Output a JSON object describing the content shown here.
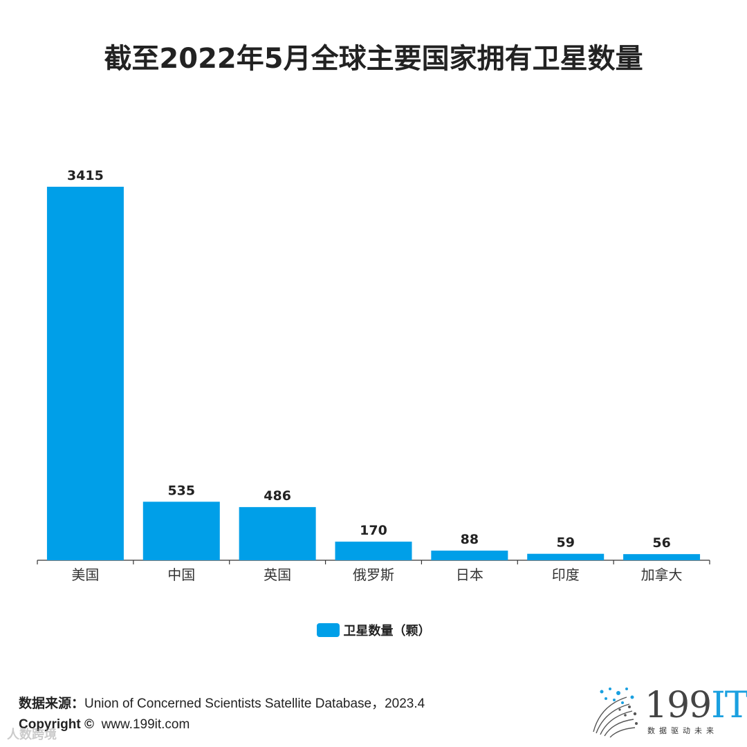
{
  "title": "截至2022年5月全球主要国家拥有卫星数量",
  "chart_data": {
    "type": "bar",
    "categories": [
      "美国",
      "中国",
      "英国",
      "俄罗斯",
      "日本",
      "印度",
      "加拿大"
    ],
    "series": [
      {
        "name": "卫星数量（颗）",
        "values": [
          3415,
          535,
          486,
          170,
          88,
          59,
          56
        ],
        "color": "#009fe8"
      }
    ],
    "ylim": [
      0,
      3415
    ],
    "grid": false,
    "legend": "bottom-center",
    "xlabel": "",
    "ylabel": ""
  },
  "legend_label": "卫星数量（颗）",
  "source_label": "数据来源：",
  "source_text": "Union of Concerned Scientists Satellite Database，2023.4",
  "copyright_label": "Copyright ©",
  "copyright_url": "www.199it.com",
  "watermark": "人数跨境",
  "logo": {
    "name": "199",
    "accent": "IT",
    "tagline": "数据驱动未来"
  }
}
